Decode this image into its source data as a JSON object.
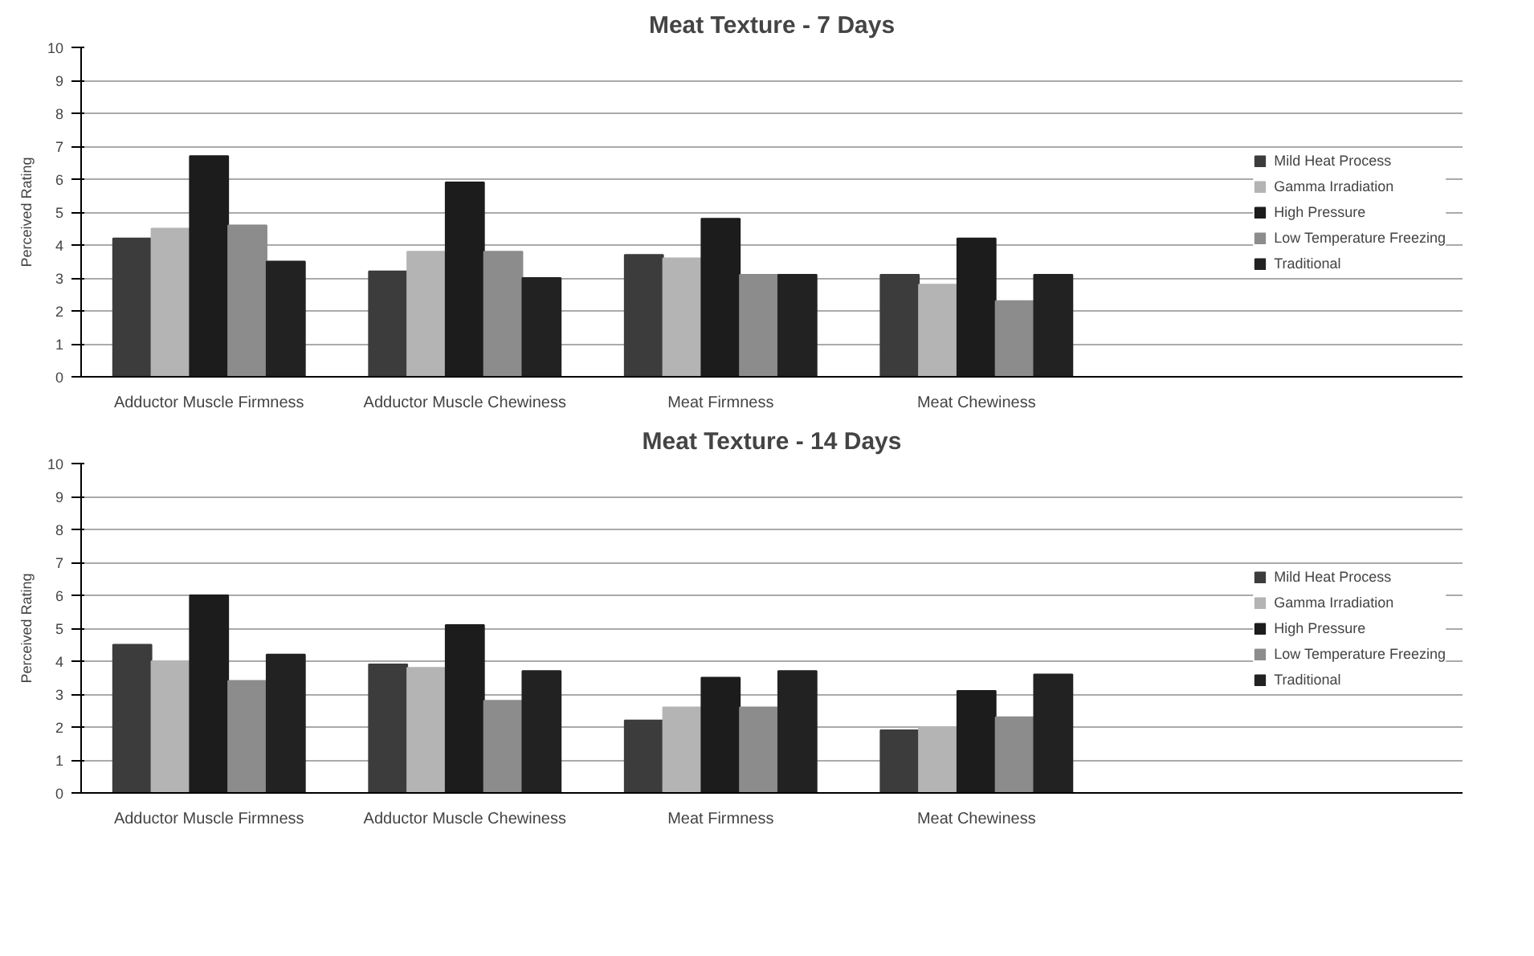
{
  "chart_data": [
    {
      "type": "bar",
      "title": "Meat Texture - 7 Days",
      "ylabel": "Perceived Rating",
      "categories": [
        "Adductor Muscle Firmness",
        "Adductor Muscle Chewiness",
        "Meat Firmness",
        "Meat Chewiness"
      ],
      "series": [
        {
          "name": "Mild Heat Process",
          "color": "#3c3c3c",
          "values": [
            4.2,
            3.2,
            3.7,
            3.1
          ]
        },
        {
          "name": "Gamma Irradiation",
          "color": "#b4b4b4",
          "values": [
            4.5,
            3.8,
            3.6,
            2.8
          ]
        },
        {
          "name": "High Pressure",
          "color": "#1c1c1c",
          "values": [
            6.7,
            5.9,
            4.8,
            4.2
          ]
        },
        {
          "name": "Low Temperature Freezing",
          "color": "#8c8c8c",
          "values": [
            4.6,
            3.8,
            3.1,
            2.3
          ]
        },
        {
          "name": "Traditional",
          "color": "#222222",
          "values": [
            3.5,
            3.0,
            3.1,
            3.1
          ]
        }
      ],
      "ylim": [
        0,
        10
      ],
      "yticks": [
        0,
        1,
        2,
        3,
        4,
        5,
        6,
        7,
        8,
        9,
        10
      ],
      "grid": "y",
      "legend": "right"
    },
    {
      "type": "bar",
      "title": "Meat Texture - 14 Days",
      "ylabel": "Perceived Rating",
      "categories": [
        "Adductor Muscle Firmness",
        "Adductor Muscle Chewiness",
        "Meat Firmness",
        "Meat Chewiness"
      ],
      "series": [
        {
          "name": "Mild Heat Process",
          "color": "#3c3c3c",
          "values": [
            4.5,
            3.9,
            2.2,
            1.9
          ]
        },
        {
          "name": "Gamma Irradiation",
          "color": "#b4b4b4",
          "values": [
            4.0,
            3.8,
            2.6,
            2.0
          ]
        },
        {
          "name": "High Pressure",
          "color": "#1c1c1c",
          "values": [
            6.0,
            5.1,
            3.5,
            3.1
          ]
        },
        {
          "name": "Low Temperature Freezing",
          "color": "#8c8c8c",
          "values": [
            3.4,
            2.8,
            2.6,
            2.3
          ]
        },
        {
          "name": "Traditional",
          "color": "#222222",
          "values": [
            4.2,
            3.7,
            3.7,
            3.6
          ]
        }
      ],
      "ylim": [
        0,
        10
      ],
      "yticks": [
        0,
        1,
        2,
        3,
        4,
        5,
        6,
        7,
        8,
        9,
        10
      ],
      "grid": "y",
      "legend": "right"
    }
  ]
}
